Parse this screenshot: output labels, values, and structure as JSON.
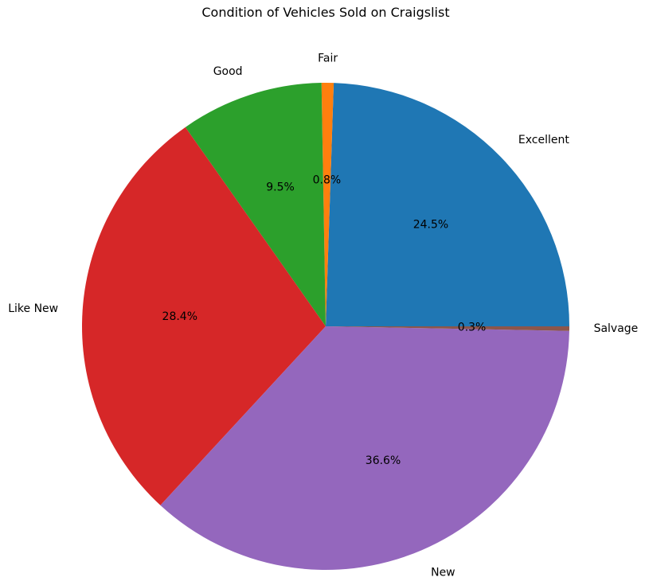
{
  "chart_data": {
    "type": "pie",
    "title": "Condition of Vehicles Sold on Craigslist",
    "slices": [
      {
        "label": "Excellent",
        "value": 24.5,
        "pct_label": "24.5%",
        "color": "#1f77b4"
      },
      {
        "label": "Fair",
        "value": 0.8,
        "pct_label": "0.8%",
        "color": "#ff7f0e"
      },
      {
        "label": "Good",
        "value": 9.5,
        "pct_label": "9.5%",
        "color": "#2ca02c"
      },
      {
        "label": "Like New",
        "value": 28.4,
        "pct_label": "28.4%",
        "color": "#d62728"
      },
      {
        "label": "New",
        "value": 36.6,
        "pct_label": "36.6%",
        "color": "#9467bd"
      },
      {
        "label": "Salvage",
        "value": 0.3,
        "pct_label": "0.3%",
        "color": "#8c564b"
      }
    ],
    "start_angle_deg": 0,
    "direction": "counterclockwise",
    "legend": "none"
  }
}
